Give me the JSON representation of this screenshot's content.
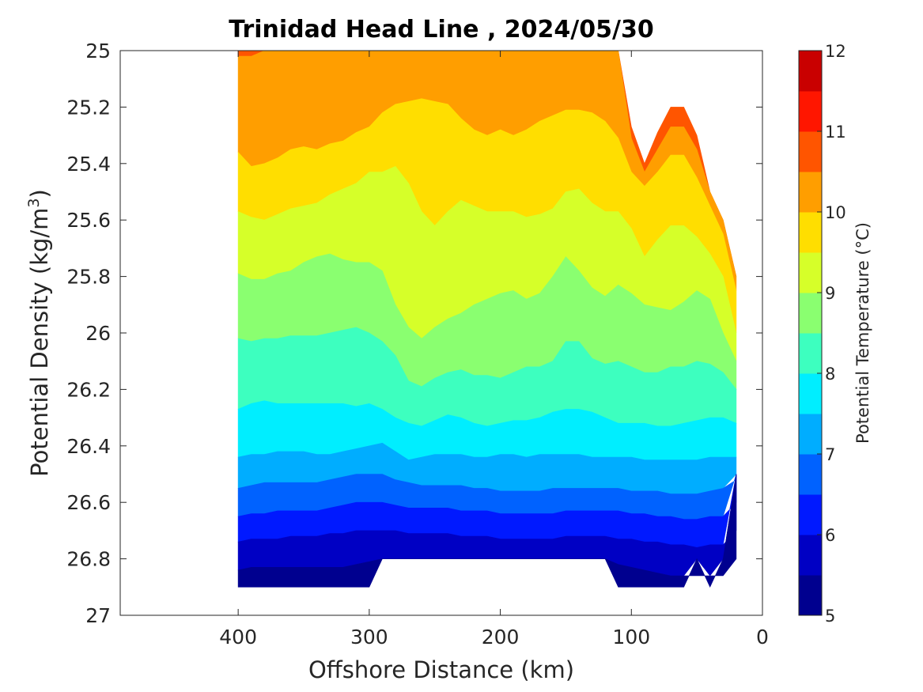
{
  "chart_data": {
    "type": "filled-contour",
    "title": "Trinidad Head Line , 2024/05/30",
    "xlabel": "Offshore Distance (km)",
    "ylabel": "Potential Density (kg/m",
    "ylabel_sup": "3",
    "ylabel_close": ")",
    "xlim": [
      490,
      0
    ],
    "ylim": [
      27,
      25
    ],
    "x_reversed": true,
    "y_reversed": true,
    "x_ticks": [
      "400",
      "300",
      "200",
      "100",
      "0"
    ],
    "x_tick_values": [
      400,
      300,
      200,
      100,
      0
    ],
    "y_ticks": [
      "25",
      "25.2",
      "25.4",
      "25.6",
      "25.8",
      "26",
      "26.2",
      "26.4",
      "26.6",
      "26.8",
      "27"
    ],
    "y_tick_values": [
      25,
      25.2,
      25.4,
      25.6,
      25.8,
      26,
      26.2,
      26.4,
      26.6,
      26.8,
      27
    ],
    "grid": false,
    "colorbar": {
      "label": "Potential Temperature (°C)",
      "range": [
        5,
        12
      ],
      "step": 0.5,
      "tick_labels": [
        "5",
        "6",
        "7",
        "8",
        "9",
        "10",
        "11",
        "12"
      ],
      "tick_values": [
        5,
        6,
        7,
        8,
        9,
        10,
        11,
        12
      ],
      "colors": [
        "#00008f",
        "#0000c4",
        "#0019ff",
        "#0062ff",
        "#00adff",
        "#00eeff",
        "#3dffbf",
        "#8aff70",
        "#d6ff29",
        "#ffde00",
        "#ff9e00",
        "#ff5500",
        "#ff1600",
        "#c90000"
      ]
    },
    "stations_km": [
      400,
      390,
      380,
      370,
      360,
      350,
      340,
      330,
      320,
      310,
      300,
      290,
      280,
      270,
      260,
      250,
      240,
      230,
      220,
      210,
      200,
      190,
      180,
      170,
      160,
      150,
      140,
      130,
      120,
      110,
      100,
      90,
      80,
      70,
      60,
      50,
      40,
      30,
      20
    ],
    "station_density_range": [
      [
        25.0,
        26.9
      ],
      [
        25.0,
        26.9
      ],
      [
        25.0,
        26.9
      ],
      [
        25.0,
        26.9
      ],
      [
        25.0,
        26.9
      ],
      [
        25.0,
        26.9
      ],
      [
        25.0,
        26.9
      ],
      [
        25.0,
        26.9
      ],
      [
        25.0,
        26.9
      ],
      [
        25.0,
        26.9
      ],
      [
        25.0,
        26.9
      ],
      [
        25.0,
        26.8
      ],
      [
        25.0,
        26.8
      ],
      [
        25.0,
        26.8
      ],
      [
        25.0,
        26.8
      ],
      [
        25.0,
        26.8
      ],
      [
        25.0,
        26.8
      ],
      [
        25.0,
        26.8
      ],
      [
        25.0,
        26.8
      ],
      [
        25.0,
        26.8
      ],
      [
        25.0,
        26.8
      ],
      [
        25.0,
        26.8
      ],
      [
        25.0,
        26.8
      ],
      [
        25.0,
        26.8
      ],
      [
        25.0,
        26.8
      ],
      [
        25.0,
        26.8
      ],
      [
        25.0,
        26.8
      ],
      [
        25.0,
        26.8
      ],
      [
        25.0,
        26.8
      ],
      [
        25.0,
        26.9
      ],
      [
        25.27,
        26.9
      ],
      [
        25.4,
        26.9
      ],
      [
        25.29,
        26.9
      ],
      [
        25.2,
        26.9
      ],
      [
        25.2,
        26.9
      ],
      [
        25.3,
        26.8
      ],
      [
        25.5,
        26.9
      ],
      [
        25.6,
        26.8
      ],
      [
        25.8,
        26.5
      ]
    ],
    "isopycnal_depths": {
      "10.5": [
        25.02,
        25.02,
        25.0,
        25.0,
        25.0,
        25.0,
        25.0,
        25.0,
        25.0,
        25.0,
        25.0,
        25.0,
        25.0,
        25.0,
        25.0,
        25.0,
        25.0,
        25.0,
        25.0,
        25.0,
        25.0,
        25.0,
        25.0,
        25.0,
        25.0,
        25.0,
        25.0,
        25.0,
        25.0,
        25.0,
        25.31,
        25.43,
        25.35,
        25.27,
        25.27,
        25.35,
        25.5,
        25.6,
        25.8
      ],
      "10.0": [
        25.36,
        25.41,
        25.4,
        25.38,
        25.35,
        25.34,
        25.35,
        25.33,
        25.32,
        25.29,
        25.27,
        25.22,
        25.19,
        25.18,
        25.17,
        25.18,
        25.19,
        25.24,
        25.28,
        25.3,
        25.28,
        25.3,
        25.28,
        25.25,
        25.23,
        25.21,
        25.21,
        25.22,
        25.25,
        25.31,
        25.43,
        25.48,
        25.43,
        25.37,
        25.37,
        25.45,
        25.55,
        25.65,
        25.85
      ],
      "9.5": [
        25.57,
        25.59,
        25.6,
        25.58,
        25.56,
        25.55,
        25.54,
        25.51,
        25.49,
        25.47,
        25.43,
        25.43,
        25.41,
        25.47,
        25.57,
        25.62,
        25.57,
        25.53,
        25.55,
        25.57,
        25.57,
        25.57,
        25.59,
        25.58,
        25.56,
        25.5,
        25.49,
        25.54,
        25.57,
        25.57,
        25.63,
        25.73,
        25.67,
        25.62,
        25.62,
        25.66,
        25.72,
        25.8,
        26.0
      ],
      "9.0": [
        25.79,
        25.81,
        25.81,
        25.79,
        25.78,
        25.75,
        25.73,
        25.72,
        25.74,
        25.75,
        25.75,
        25.78,
        25.9,
        25.98,
        26.02,
        25.98,
        25.95,
        25.93,
        25.9,
        25.88,
        25.86,
        25.85,
        25.88,
        25.86,
        25.8,
        25.73,
        25.78,
        25.84,
        25.87,
        25.83,
        25.86,
        25.9,
        25.91,
        25.92,
        25.89,
        25.85,
        25.88,
        26.0,
        26.1
      ],
      "8.5": [
        26.02,
        26.03,
        26.02,
        26.02,
        26.01,
        26.01,
        26.01,
        26.0,
        25.99,
        25.98,
        26.0,
        26.03,
        26.08,
        26.17,
        26.19,
        26.16,
        26.14,
        26.13,
        26.15,
        26.15,
        26.16,
        26.14,
        26.12,
        26.12,
        26.1,
        26.03,
        26.03,
        26.09,
        26.11,
        26.1,
        26.12,
        26.14,
        26.14,
        26.12,
        26.12,
        26.1,
        26.11,
        26.14,
        26.2
      ],
      "8.0": [
        26.27,
        26.25,
        26.24,
        26.25,
        26.25,
        26.25,
        26.25,
        26.25,
        26.25,
        26.26,
        26.25,
        26.27,
        26.3,
        26.32,
        26.33,
        26.31,
        26.29,
        26.3,
        26.32,
        26.33,
        26.32,
        26.31,
        26.31,
        26.3,
        26.28,
        26.27,
        26.27,
        26.28,
        26.3,
        26.32,
        26.32,
        26.32,
        26.33,
        26.33,
        26.32,
        26.31,
        26.3,
        26.3,
        26.32
      ],
      "7.5": [
        26.44,
        26.43,
        26.43,
        26.42,
        26.42,
        26.42,
        26.43,
        26.43,
        26.42,
        26.41,
        26.4,
        26.39,
        26.42,
        26.45,
        26.44,
        26.43,
        26.43,
        26.43,
        26.44,
        26.44,
        26.43,
        26.43,
        26.44,
        26.43,
        26.43,
        26.43,
        26.43,
        26.44,
        26.44,
        26.44,
        26.44,
        26.45,
        26.45,
        26.45,
        26.45,
        26.45,
        26.44,
        26.44,
        26.44
      ],
      "7.0": [
        26.55,
        26.54,
        26.53,
        26.53,
        26.53,
        26.53,
        26.53,
        26.52,
        26.51,
        26.5,
        26.5,
        26.5,
        26.52,
        26.53,
        26.54,
        26.54,
        26.54,
        26.54,
        26.55,
        26.55,
        26.56,
        26.56,
        26.56,
        26.56,
        26.55,
        26.55,
        26.55,
        26.55,
        26.55,
        26.55,
        26.56,
        26.56,
        26.56,
        26.57,
        26.57,
        26.57,
        26.56,
        26.55,
        26.52
      ],
      "6.5": [
        26.65,
        26.64,
        26.64,
        26.63,
        26.63,
        26.63,
        26.63,
        26.62,
        26.61,
        26.6,
        26.6,
        26.6,
        26.61,
        26.62,
        26.62,
        26.62,
        26.62,
        26.63,
        26.63,
        26.63,
        26.64,
        26.64,
        26.64,
        26.64,
        26.64,
        26.63,
        26.63,
        26.63,
        26.63,
        26.63,
        26.64,
        26.64,
        26.65,
        26.65,
        26.66,
        26.66,
        26.65,
        26.65,
        26.6
      ],
      "6.0": [
        26.74,
        26.73,
        26.73,
        26.73,
        26.72,
        26.72,
        26.72,
        26.71,
        26.71,
        26.7,
        26.7,
        26.7,
        26.7,
        26.71,
        26.71,
        26.71,
        26.71,
        26.72,
        26.72,
        26.72,
        26.73,
        26.73,
        26.73,
        26.73,
        26.73,
        26.72,
        26.72,
        26.72,
        26.72,
        26.73,
        26.73,
        26.74,
        26.74,
        26.75,
        26.75,
        26.76,
        26.75,
        26.75,
        26.7
      ],
      "5.5": [
        26.84,
        26.83,
        26.83,
        26.83,
        26.83,
        26.83,
        26.83,
        26.83,
        26.83,
        26.82,
        26.81,
        26.8,
        26.8,
        26.8,
        26.8,
        26.8,
        26.8,
        26.8,
        26.8,
        26.8,
        26.8,
        26.8,
        26.8,
        26.8,
        26.8,
        26.8,
        26.8,
        26.8,
        26.8,
        26.82,
        26.83,
        26.84,
        26.85,
        26.86,
        26.86,
        26.86,
        26.86,
        26.86,
        26.8
      ]
    }
  }
}
